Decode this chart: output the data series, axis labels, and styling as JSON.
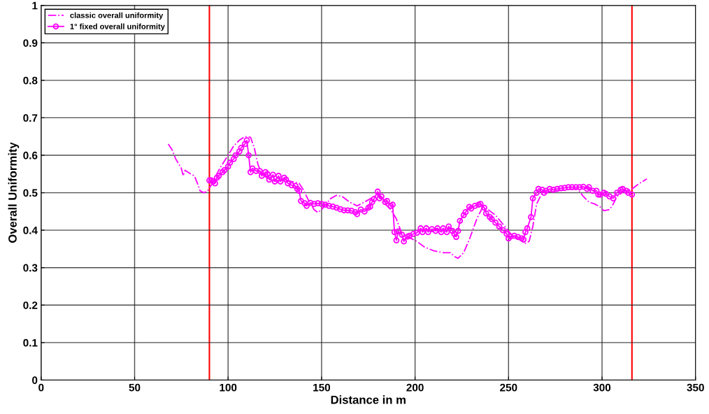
{
  "chart_data": {
    "type": "line",
    "xlabel": "Distance in m",
    "ylabel": "Overall Uniformity",
    "xlim": [
      0,
      350
    ],
    "xticks": [
      0,
      50,
      100,
      150,
      200,
      250,
      300,
      350
    ],
    "ylim": [
      0,
      1
    ],
    "yticks": [
      0,
      0.1,
      0.2,
      0.3,
      0.4,
      0.5,
      0.6,
      0.7,
      0.8,
      0.9,
      1
    ],
    "grid": true,
    "legend": "top left",
    "series": [
      {
        "name": "classic overall uniformity",
        "color": "#ff00ff",
        "line_style": "dashdot",
        "marker": "none",
        "x": [
          68,
          70,
          72,
          75,
          76,
          77,
          80,
          82,
          84,
          85,
          87,
          89,
          91,
          95,
          100,
          103,
          106,
          109,
          112,
          114,
          116,
          118,
          122,
          126,
          130,
          134,
          138,
          140,
          143,
          146,
          148,
          150,
          155,
          158,
          161,
          165,
          169,
          173,
          178,
          181,
          183,
          187,
          190,
          193,
          197,
          201,
          205,
          210,
          215,
          219,
          221,
          223,
          226,
          229,
          233,
          236,
          239,
          243,
          248,
          252,
          256,
          259,
          261,
          263,
          265,
          268,
          275,
          285,
          287,
          290,
          293,
          296,
          299,
          301,
          304,
          306,
          308,
          312,
          316,
          320,
          324
        ],
        "values": [
          0.63,
          0.615,
          0.59,
          0.565,
          0.545,
          0.56,
          0.55,
          0.545,
          0.52,
          0.505,
          0.5,
          0.505,
          0.52,
          0.56,
          0.6,
          0.625,
          0.64,
          0.65,
          0.648,
          0.62,
          0.575,
          0.55,
          0.535,
          0.53,
          0.535,
          0.53,
          0.525,
          0.51,
          0.48,
          0.455,
          0.447,
          0.455,
          0.485,
          0.493,
          0.49,
          0.475,
          0.465,
          0.475,
          0.49,
          0.495,
          0.475,
          0.455,
          0.43,
          0.39,
          0.38,
          0.37,
          0.355,
          0.345,
          0.34,
          0.34,
          0.33,
          0.325,
          0.34,
          0.375,
          0.43,
          0.46,
          0.455,
          0.44,
          0.41,
          0.385,
          0.375,
          0.365,
          0.37,
          0.41,
          0.47,
          0.5,
          0.505,
          0.51,
          0.51,
          0.49,
          0.475,
          0.47,
          0.462,
          0.452,
          0.455,
          0.47,
          0.49,
          0.505,
          0.51,
          0.525,
          0.537
        ]
      },
      {
        "name": "1° fixed overall uniformity",
        "color": "#ff00ff",
        "line_style": "solid",
        "marker": "circle",
        "x": [
          90,
          91,
          92,
          93,
          94,
          95,
          97,
          98,
          100,
          101,
          103,
          104,
          106,
          107,
          109,
          110,
          111,
          112,
          113,
          115,
          117,
          118,
          120,
          121,
          122,
          124,
          125,
          127,
          128,
          130,
          131,
          132,
          134,
          136,
          137,
          138,
          139,
          141,
          142,
          144,
          146,
          148,
          150,
          152,
          154,
          156,
          158,
          160,
          162,
          164,
          166,
          168,
          169,
          171,
          173,
          175,
          176,
          177,
          178,
          180,
          181,
          182,
          184,
          185,
          187,
          188,
          189,
          190,
          191,
          193,
          194,
          196,
          197,
          199,
          201,
          203,
          204,
          206,
          207,
          209,
          211,
          212,
          214,
          215,
          217,
          218,
          220,
          221,
          222,
          223,
          224,
          226,
          227,
          229,
          230,
          232,
          234,
          235,
          237,
          238,
          240,
          241,
          243,
          245,
          247,
          249,
          250,
          251,
          253,
          255,
          257,
          258,
          259,
          260,
          262,
          263,
          265,
          266,
          268,
          269,
          270,
          272,
          274,
          276,
          278,
          280,
          282,
          284,
          286,
          288,
          290,
          292,
          293,
          295,
          297,
          298,
          299,
          301,
          302,
          304,
          306,
          308,
          310,
          311,
          313,
          314,
          316
        ],
        "values": [
          0.533,
          0.533,
          0.53,
          0.525,
          0.54,
          0.545,
          0.555,
          0.56,
          0.57,
          0.58,
          0.59,
          0.6,
          0.61,
          0.62,
          0.63,
          0.64,
          0.6,
          0.555,
          0.565,
          0.558,
          0.558,
          0.545,
          0.555,
          0.55,
          0.535,
          0.548,
          0.53,
          0.545,
          0.53,
          0.54,
          0.535,
          0.525,
          0.52,
          0.518,
          0.51,
          0.505,
          0.478,
          0.472,
          0.465,
          0.473,
          0.47,
          0.472,
          0.47,
          0.468,
          0.465,
          0.463,
          0.46,
          0.456,
          0.453,
          0.453,
          0.452,
          0.448,
          0.443,
          0.455,
          0.45,
          0.46,
          0.463,
          0.475,
          0.483,
          0.503,
          0.485,
          0.49,
          0.475,
          0.478,
          0.465,
          0.468,
          0.395,
          0.373,
          0.397,
          0.388,
          0.37,
          0.383,
          0.385,
          0.39,
          0.393,
          0.405,
          0.395,
          0.405,
          0.395,
          0.403,
          0.398,
          0.405,
          0.395,
          0.405,
          0.395,
          0.41,
          0.398,
          0.39,
          0.382,
          0.398,
          0.425,
          0.44,
          0.448,
          0.462,
          0.458,
          0.465,
          0.468,
          0.47,
          0.46,
          0.445,
          0.435,
          0.43,
          0.42,
          0.41,
          0.4,
          0.39,
          0.378,
          0.383,
          0.385,
          0.382,
          0.378,
          0.375,
          0.395,
          0.405,
          0.435,
          0.485,
          0.5,
          0.51,
          0.508,
          0.5,
          0.505,
          0.51,
          0.508,
          0.51,
          0.512,
          0.513,
          0.515,
          0.515,
          0.515,
          0.515,
          0.516,
          0.51,
          0.515,
          0.505,
          0.505,
          0.495,
          0.495,
          0.5,
          0.497,
          0.49,
          0.485,
          0.5,
          0.508,
          0.51,
          0.505,
          0.5,
          0.495
        ]
      }
    ],
    "ref_lines": [
      {
        "axis": "x",
        "value": 90,
        "color": "#ff0000"
      },
      {
        "axis": "x",
        "value": 316,
        "color": "#ff0000"
      }
    ]
  }
}
